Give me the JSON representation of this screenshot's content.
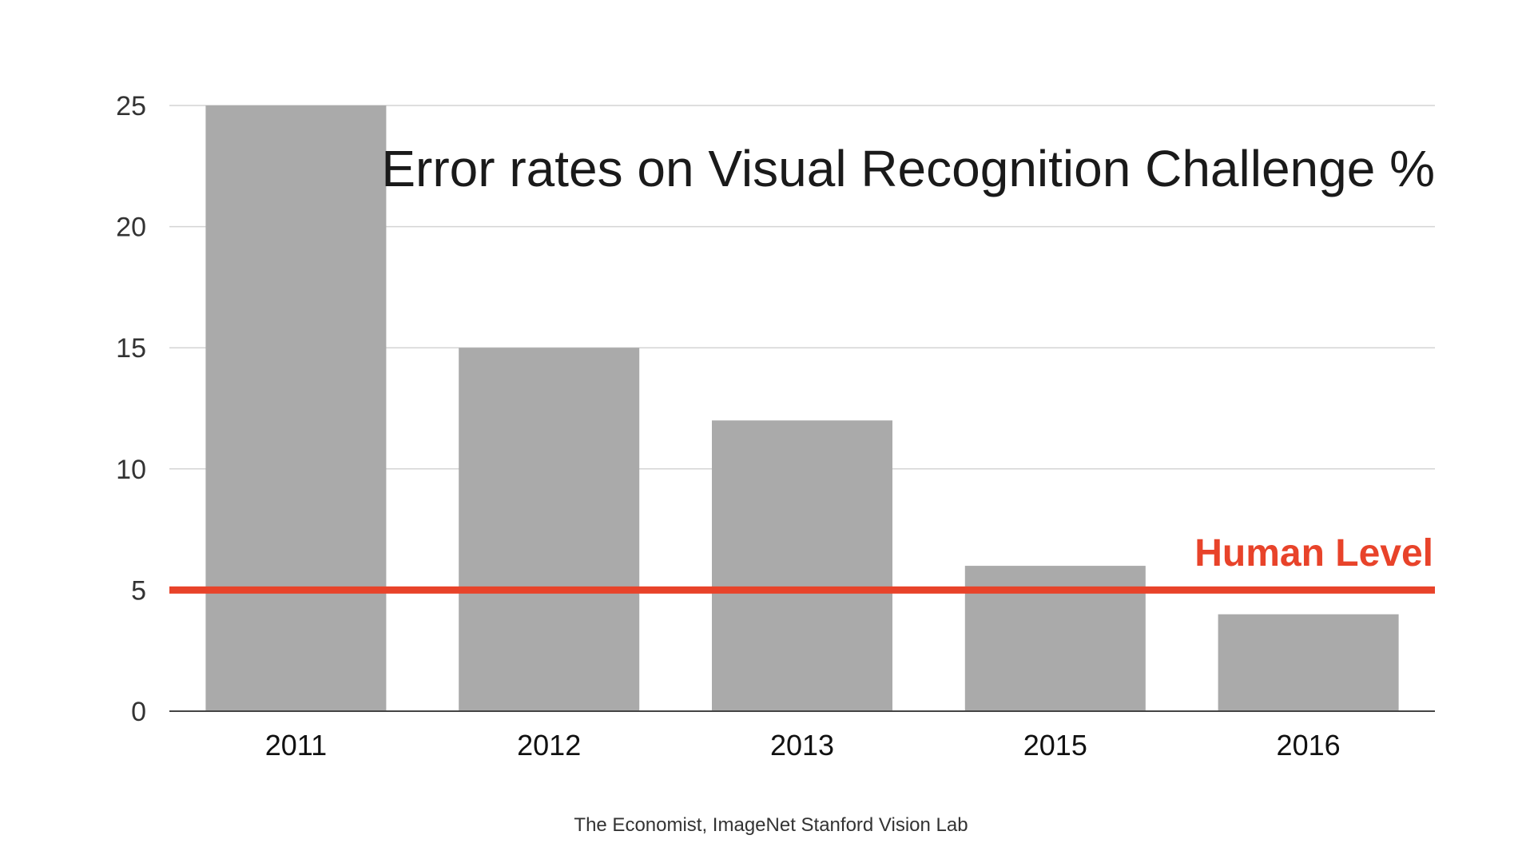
{
  "chart_data": {
    "type": "bar",
    "title": "Error rates on Visual Recognition Challenge %",
    "categories": [
      "2011",
      "2012",
      "2013",
      "2015",
      "2016"
    ],
    "values": [
      25,
      15,
      12,
      6,
      4
    ],
    "ylim": [
      0,
      25
    ],
    "yticks": [
      0,
      5,
      10,
      15,
      20,
      25
    ],
    "xlabel": "",
    "ylabel": "",
    "grid": true,
    "legend": "none",
    "bar_color": "#aaaaaa",
    "reference_line": {
      "label": "Human Level",
      "value": 5,
      "color": "#e8432a"
    },
    "source": "The Economist, ImageNet Stanford Vision Lab"
  }
}
